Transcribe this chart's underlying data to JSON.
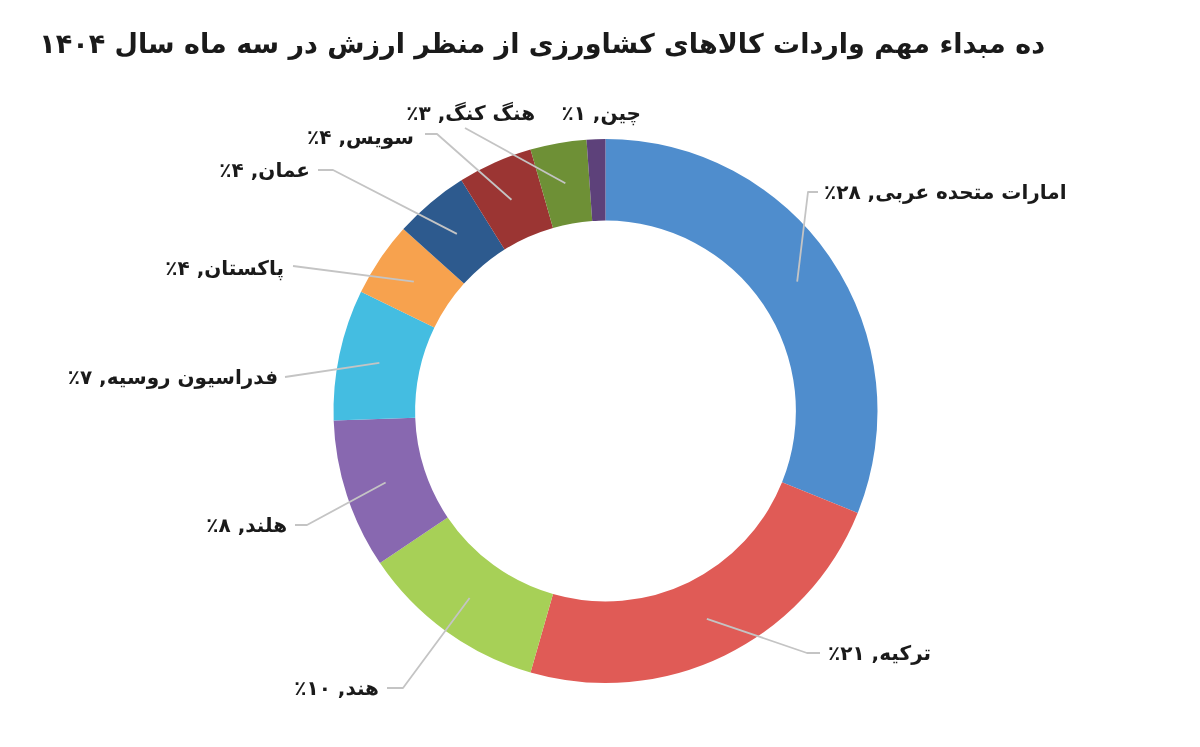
{
  "chart_data": {
    "type": "donut",
    "title": "ده مبداء مهم واردات کالاهای کشاورزی از منظر ارزش در سه ماه سال ۱۴۰۴",
    "categories": [
      "امارات متحده عربی",
      "ترکیه",
      "هند",
      "هلند",
      "فدراسیون روسیه",
      "پاکستان",
      "عمان",
      "سویس",
      "هنگ کنگ",
      "چین"
    ],
    "values": [
      28,
      21,
      10,
      8,
      7,
      4,
      4,
      4,
      3,
      1
    ],
    "colors": [
      "#4f8dcd",
      "#e05b56",
      "#a7d057",
      "#8868b0",
      "#44bde1",
      "#f7a24e",
      "#2d5a8e",
      "#9b3533",
      "#6e9036",
      "#5d417a"
    ],
    "value_labels": [
      "۲۸٪",
      "۲۱٪",
      "۱۰٪",
      "۸٪",
      "۷٪",
      "۴٪",
      "۴٪",
      "۴٪",
      "۳٪",
      "۱٪"
    ]
  }
}
